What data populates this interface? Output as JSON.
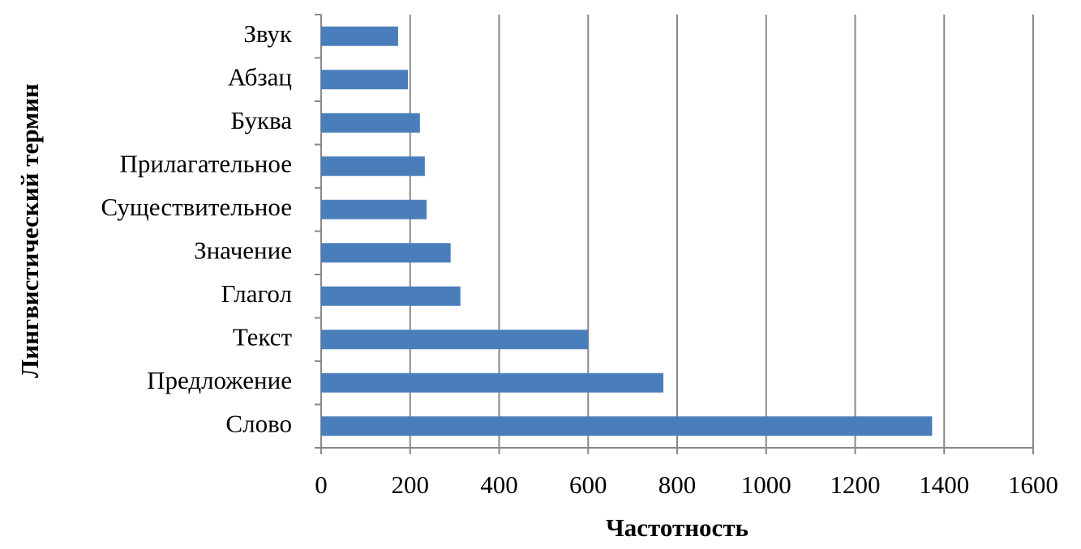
{
  "chart_data": {
    "type": "bar",
    "orientation": "horizontal",
    "x_label": "Частотность",
    "y_label": "Лингвистический термин",
    "categories": [
      "Слово",
      "Предложение",
      "Текст",
      "Глагол",
      "Значение",
      "Существительное",
      "Прилагательное",
      "Буква",
      "Абзац",
      "Звук"
    ],
    "values": [
      1373,
      769,
      600,
      313,
      291,
      237,
      233,
      222,
      195,
      173
    ],
    "color": "#4a7ebb",
    "xlim": [
      0,
      1600
    ],
    "xticks": [
      0,
      200,
      400,
      600,
      800,
      1000,
      1200,
      1400,
      1600
    ],
    "grid": true
  }
}
